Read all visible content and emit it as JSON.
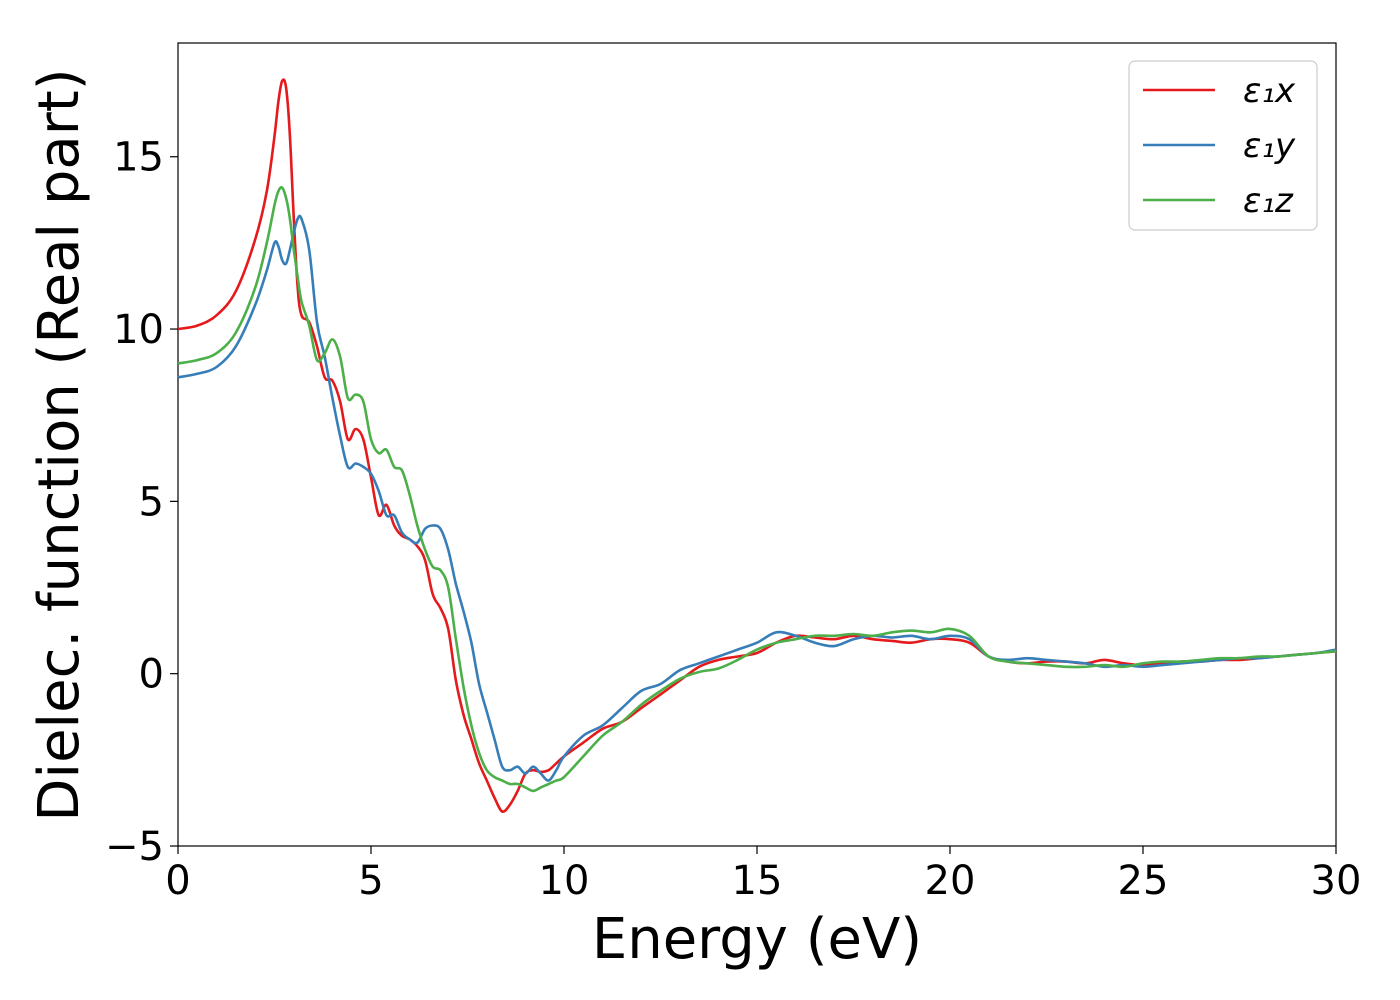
{
  "chart_data": {
    "type": "line",
    "title": "",
    "xlabel": "Energy (eV)",
    "ylabel": "Dielec. function (Real part)",
    "xlim": [
      0,
      30
    ],
    "ylim": [
      -5,
      18.3
    ],
    "xticks": [
      0,
      5,
      10,
      15,
      20,
      25,
      30
    ],
    "yticks": [
      -5,
      0,
      5,
      10,
      15
    ],
    "xtick_labels": [
      "0",
      "5",
      "10",
      "15",
      "20",
      "25",
      "30"
    ],
    "ytick_labels": [
      "−5",
      "0",
      "5",
      "10",
      "15"
    ],
    "grid": false,
    "legend_position": "top-right",
    "series": [
      {
        "name": "ε₁x",
        "color": "#e41a1c",
        "x": [
          0,
          0.5,
          1.0,
          1.5,
          2.0,
          2.3,
          2.5,
          2.6,
          2.7,
          2.8,
          2.9,
          3.0,
          3.1,
          3.2,
          3.4,
          3.6,
          3.8,
          4.0,
          4.2,
          4.4,
          4.6,
          4.8,
          5.0,
          5.2,
          5.4,
          5.6,
          5.8,
          6.0,
          6.2,
          6.4,
          6.6,
          6.8,
          7.0,
          7.2,
          7.4,
          7.6,
          7.8,
          8.0,
          8.2,
          8.4,
          8.6,
          8.8,
          9.0,
          9.2,
          9.4,
          9.6,
          9.8,
          10.0,
          10.5,
          11.0,
          11.5,
          12.0,
          12.5,
          13.0,
          13.5,
          14.0,
          14.5,
          15.0,
          15.5,
          16.0,
          16.5,
          17.0,
          17.5,
          18.0,
          18.5,
          19.0,
          19.5,
          20.0,
          20.5,
          21.0,
          21.5,
          22.0,
          22.5,
          23.0,
          23.5,
          24.0,
          24.5,
          25.0,
          25.5,
          26.0,
          26.5,
          27.0,
          27.5,
          28.0,
          28.5,
          29.0,
          29.5,
          30.0
        ],
        "values": [
          10.0,
          10.1,
          10.4,
          11.1,
          12.6,
          14.0,
          15.6,
          16.6,
          17.2,
          17.0,
          15.6,
          13.2,
          11.2,
          10.4,
          10.2,
          9.5,
          8.6,
          8.5,
          7.9,
          6.8,
          7.1,
          6.8,
          5.7,
          4.6,
          4.9,
          4.3,
          4.0,
          3.9,
          3.7,
          3.3,
          2.3,
          1.9,
          1.3,
          -0.2,
          -1.2,
          -1.9,
          -2.6,
          -3.1,
          -3.6,
          -4.0,
          -3.8,
          -3.4,
          -2.9,
          -2.8,
          -2.85,
          -2.8,
          -2.6,
          -2.4,
          -2.0,
          -1.6,
          -1.4,
          -1.0,
          -0.6,
          -0.2,
          0.2,
          0.4,
          0.5,
          0.6,
          0.9,
          1.1,
          1.05,
          1.0,
          1.1,
          1.0,
          0.95,
          0.9,
          1.0,
          1.0,
          0.9,
          0.5,
          0.35,
          0.3,
          0.35,
          0.35,
          0.3,
          0.4,
          0.3,
          0.25,
          0.3,
          0.35,
          0.35,
          0.4,
          0.4,
          0.45,
          0.5,
          0.55,
          0.6,
          0.65
        ]
      },
      {
        "name": "ε₁y",
        "color": "#377eb8",
        "x": [
          0,
          0.5,
          1.0,
          1.5,
          2.0,
          2.3,
          2.5,
          2.6,
          2.7,
          2.8,
          2.9,
          3.0,
          3.1,
          3.2,
          3.4,
          3.6,
          3.8,
          4.0,
          4.2,
          4.4,
          4.6,
          4.8,
          5.0,
          5.2,
          5.4,
          5.6,
          5.8,
          6.0,
          6.2,
          6.4,
          6.6,
          6.8,
          7.0,
          7.2,
          7.4,
          7.6,
          7.8,
          8.0,
          8.2,
          8.4,
          8.6,
          8.8,
          9.0,
          9.2,
          9.4,
          9.6,
          9.8,
          10.0,
          10.5,
          11.0,
          11.5,
          12.0,
          12.5,
          13.0,
          13.5,
          14.0,
          14.5,
          15.0,
          15.5,
          16.0,
          16.5,
          17.0,
          17.5,
          18.0,
          18.5,
          19.0,
          19.5,
          20.0,
          20.5,
          21.0,
          21.5,
          22.0,
          22.5,
          23.0,
          23.5,
          24.0,
          24.5,
          25.0,
          25.5,
          26.0,
          26.5,
          27.0,
          27.5,
          28.0,
          28.5,
          29.0,
          29.5,
          30.0
        ],
        "values": [
          8.6,
          8.7,
          8.9,
          9.5,
          10.7,
          11.7,
          12.5,
          12.4,
          12.0,
          11.9,
          12.3,
          12.8,
          13.2,
          13.2,
          12.3,
          10.2,
          9.2,
          8.0,
          6.9,
          6.0,
          6.1,
          6.0,
          5.8,
          5.3,
          4.6,
          4.6,
          4.1,
          3.9,
          3.8,
          4.2,
          4.3,
          4.2,
          3.6,
          2.6,
          1.8,
          0.9,
          -0.3,
          -1.1,
          -1.9,
          -2.7,
          -2.8,
          -2.7,
          -2.9,
          -2.7,
          -2.9,
          -3.1,
          -2.8,
          -2.4,
          -1.8,
          -1.5,
          -1.0,
          -0.5,
          -0.3,
          0.1,
          0.3,
          0.5,
          0.7,
          0.9,
          1.2,
          1.1,
          0.9,
          0.8,
          1.0,
          1.1,
          1.05,
          1.1,
          1.0,
          1.1,
          1.0,
          0.5,
          0.4,
          0.45,
          0.4,
          0.35,
          0.3,
          0.2,
          0.25,
          0.2,
          0.25,
          0.3,
          0.35,
          0.4,
          0.45,
          0.45,
          0.5,
          0.55,
          0.6,
          0.7
        ]
      },
      {
        "name": "ε₁z",
        "color": "#4daf4a",
        "x": [
          0,
          0.5,
          1.0,
          1.5,
          2.0,
          2.3,
          2.5,
          2.6,
          2.7,
          2.8,
          2.9,
          3.0,
          3.1,
          3.2,
          3.4,
          3.6,
          3.8,
          4.0,
          4.2,
          4.4,
          4.6,
          4.8,
          5.0,
          5.2,
          5.4,
          5.6,
          5.8,
          6.0,
          6.2,
          6.4,
          6.6,
          6.8,
          7.0,
          7.2,
          7.4,
          7.6,
          7.8,
          8.0,
          8.2,
          8.4,
          8.6,
          8.8,
          9.0,
          9.2,
          9.4,
          9.6,
          9.8,
          10.0,
          10.5,
          11.0,
          11.5,
          12.0,
          12.5,
          13.0,
          13.5,
          14.0,
          14.5,
          15.0,
          15.5,
          16.0,
          16.5,
          17.0,
          17.5,
          18.0,
          18.5,
          19.0,
          19.5,
          20.0,
          20.5,
          21.0,
          21.5,
          22.0,
          22.5,
          23.0,
          23.5,
          24.0,
          24.5,
          25.0,
          25.5,
          26.0,
          26.5,
          27.0,
          27.5,
          28.0,
          28.5,
          29.0,
          29.5,
          30.0
        ],
        "values": [
          9.0,
          9.1,
          9.3,
          9.9,
          11.2,
          12.5,
          13.6,
          14.0,
          14.1,
          13.8,
          13.2,
          12.3,
          11.5,
          10.8,
          10.1,
          9.1,
          9.3,
          9.7,
          9.2,
          8.0,
          8.1,
          7.9,
          6.8,
          6.4,
          6.5,
          6.0,
          5.9,
          5.2,
          4.3,
          3.6,
          3.1,
          3.0,
          2.5,
          1.0,
          -0.4,
          -1.5,
          -2.3,
          -2.8,
          -3.0,
          -3.1,
          -3.2,
          -3.2,
          -3.3,
          -3.4,
          -3.3,
          -3.2,
          -3.1,
          -3.0,
          -2.4,
          -1.8,
          -1.4,
          -0.9,
          -0.5,
          -0.15,
          0.05,
          0.15,
          0.4,
          0.7,
          0.9,
          1.0,
          1.1,
          1.1,
          1.15,
          1.1,
          1.2,
          1.25,
          1.2,
          1.3,
          1.1,
          0.5,
          0.35,
          0.3,
          0.25,
          0.2,
          0.2,
          0.25,
          0.2,
          0.3,
          0.35,
          0.35,
          0.4,
          0.45,
          0.45,
          0.5,
          0.5,
          0.55,
          0.6,
          0.65
        ]
      }
    ]
  }
}
